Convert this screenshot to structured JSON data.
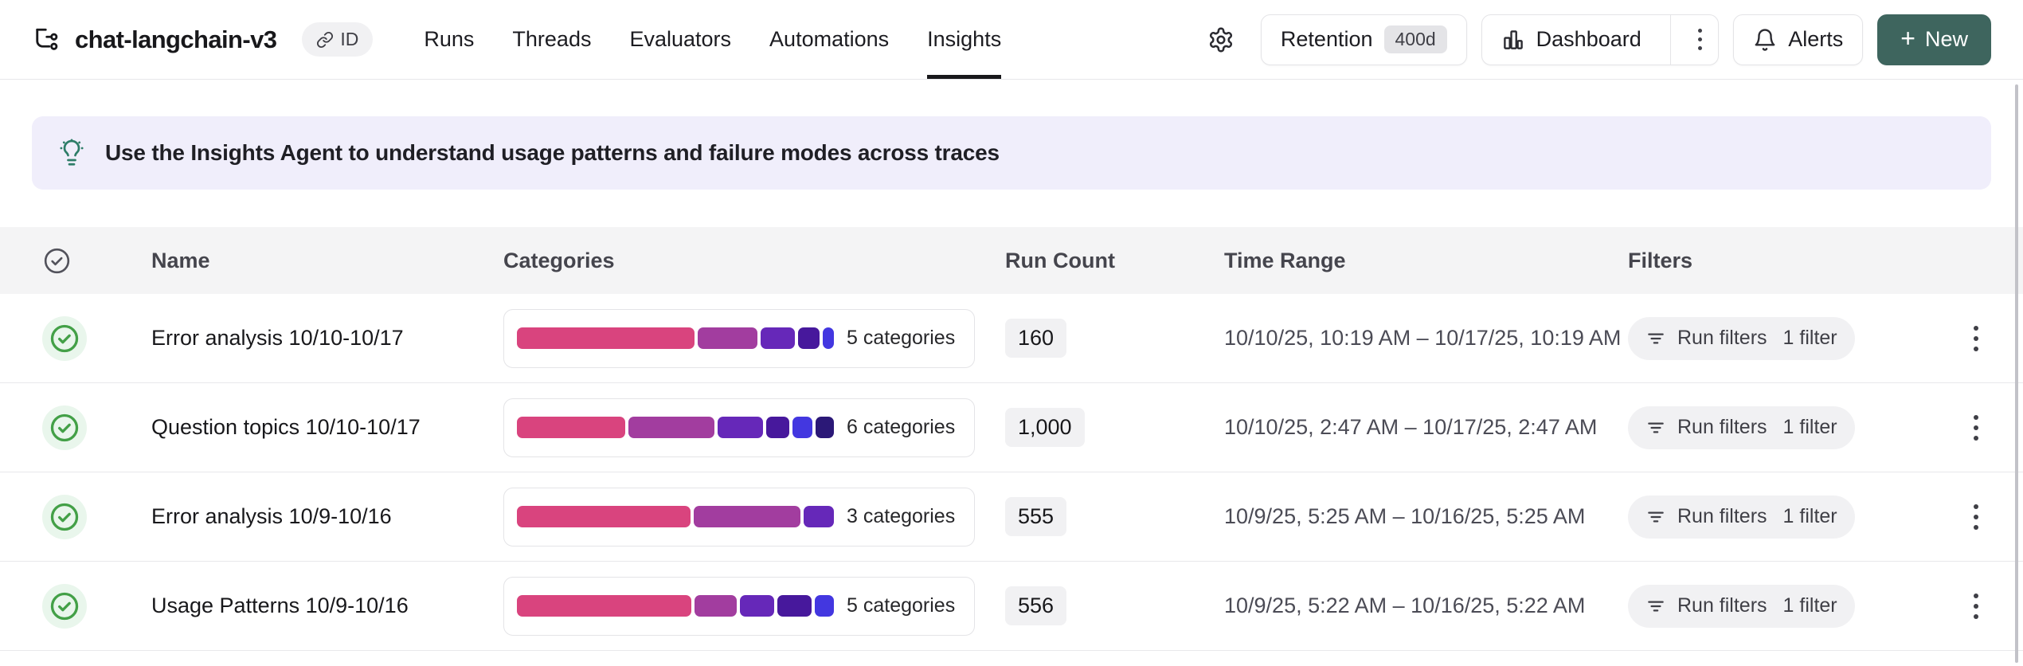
{
  "header": {
    "project_title": "chat-langchain-v3",
    "id_badge": "ID",
    "nav": [
      {
        "label": "Runs"
      },
      {
        "label": "Threads"
      },
      {
        "label": "Evaluators"
      },
      {
        "label": "Automations"
      },
      {
        "label": "Insights"
      }
    ],
    "active_tab": "Insights",
    "actions": {
      "retention_label": "Retention",
      "retention_value": "400d",
      "dashboard_label": "Dashboard",
      "alerts_label": "Alerts",
      "new_plus": "+",
      "new_label": "New"
    }
  },
  "banner": {
    "text": "Use the Insights Agent to understand usage patterns and failure modes across traces"
  },
  "table": {
    "columns": [
      "Name",
      "Categories",
      "Run Count",
      "Time Range",
      "Filters"
    ],
    "segment_palette": [
      "#d9447e",
      "#a23d9f",
      "#6628b9",
      "#47189c",
      "#4337e0",
      "#2b1877"
    ],
    "rows": [
      {
        "name": "Error analysis 10/10-10/17",
        "categories_label": "5 categories",
        "segments_pct": [
          57,
          19,
          11,
          7,
          3.5
        ],
        "run_count": "160",
        "time_range": "10/10/25, 10:19 AM – 10/17/25, 10:19 AM",
        "filter_label": "Run filters",
        "filter_count": "1 filter"
      },
      {
        "name": "Question topics 10/10-10/17",
        "categories_label": "6 categories",
        "segments_pct": [
          34.5,
          27.5,
          14.5,
          7.5,
          6.3,
          5.8
        ],
        "run_count": "1,000",
        "time_range": "10/10/25, 2:47 AM – 10/17/25, 2:47 AM",
        "filter_label": "Run filters",
        "filter_count": "1 filter"
      },
      {
        "name": "Error analysis 10/9-10/16",
        "categories_label": "3 categories",
        "segments_pct": [
          55,
          34,
          9.5
        ],
        "run_count": "555",
        "time_range": "10/9/25, 5:25 AM – 10/16/25, 5:25 AM",
        "filter_label": "Run filters",
        "filter_count": "1 filter"
      },
      {
        "name": "Usage Patterns 10/9-10/16",
        "categories_label": "5 categories",
        "segments_pct": [
          55.5,
          13.5,
          11,
          11,
          6
        ],
        "run_count": "556",
        "time_range": "10/9/25, 5:22 AM – 10/16/25, 5:22 AM",
        "filter_label": "Run filters",
        "filter_count": "1 filter"
      }
    ]
  },
  "colors": {
    "status_green": "#43a047",
    "status_green_halo": "#e9f6ec",
    "new_button": "#3e655e",
    "banner_bg": "#f0eefb",
    "banner_icon": "#2e7d68",
    "table_header_bg": "#f4f4f5"
  }
}
